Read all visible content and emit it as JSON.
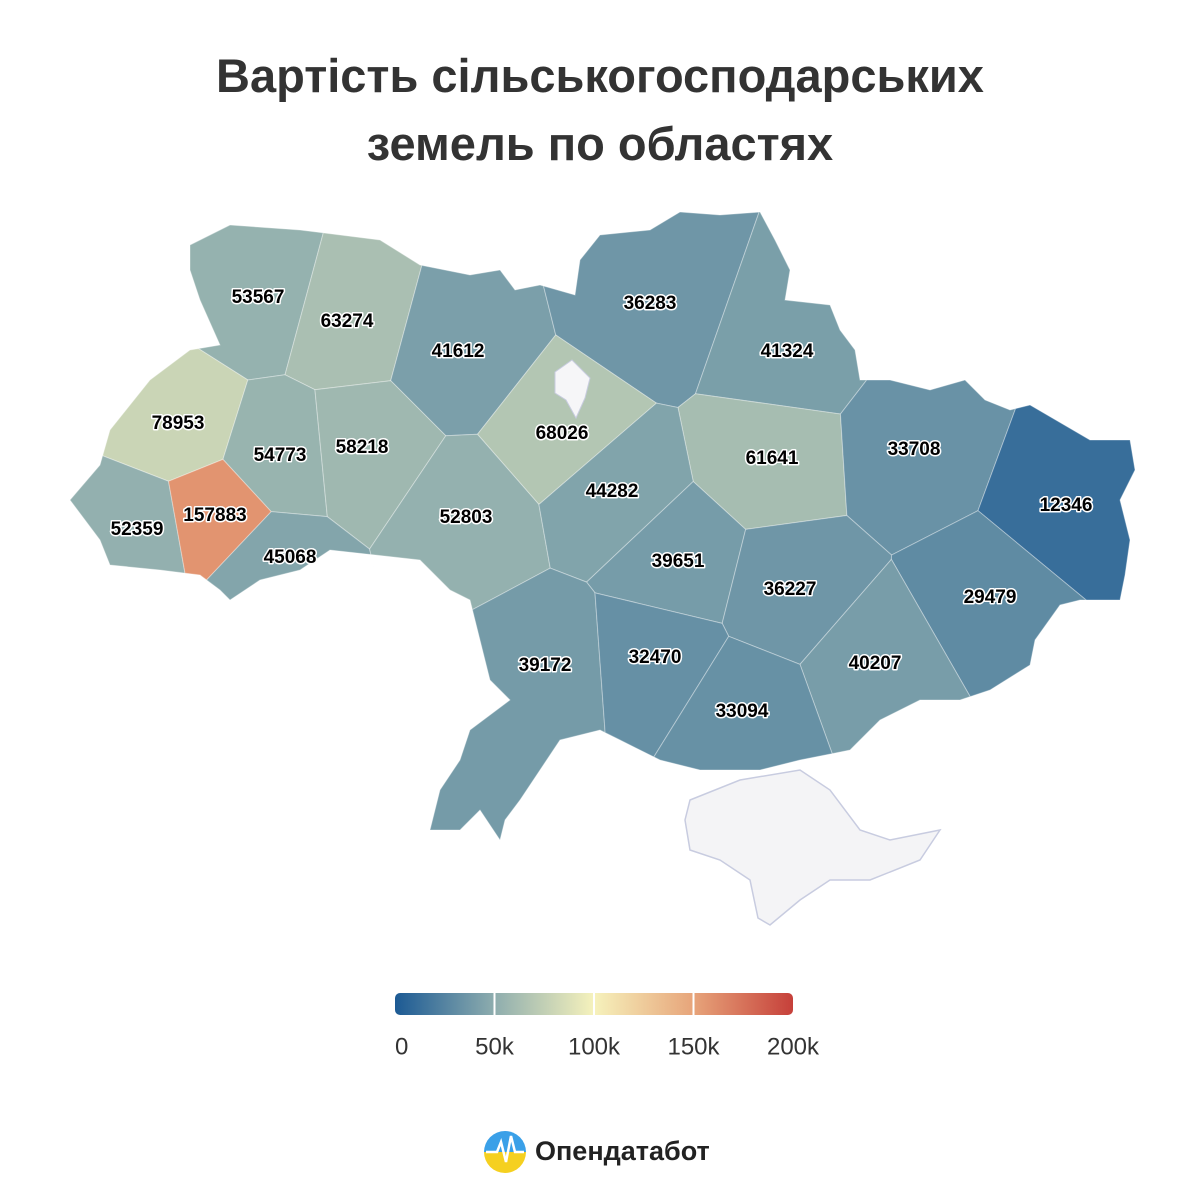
{
  "chart_data": {
    "type": "choropleth",
    "title": "Вартість сільськогосподарських земель по областях",
    "values": [
      53567,
      63274,
      41612,
      36283,
      41324,
      78953,
      54773,
      58218,
      68026,
      61641,
      33708,
      12346,
      52359,
      157883,
      45068,
      52803,
      44282,
      39651,
      36227,
      29479,
      39172,
      32470,
      40207,
      33094
    ],
    "colorbar": {
      "lim": [
        0,
        200000
      ],
      "ticks": [
        0,
        {
          "value": 50000,
          "label": "50k"
        },
        {
          "value": 100000,
          "label": "100k"
        },
        {
          "value": 150000,
          "label": "150k"
        },
        {
          "value": 200000,
          "label": "200k"
        }
      ],
      "colors": [
        "#1c5a94",
        "#8eadae",
        "#f6f2bc",
        "#e7a47a",
        "#c6403a"
      ]
    }
  },
  "brand": "Опендатабот"
}
